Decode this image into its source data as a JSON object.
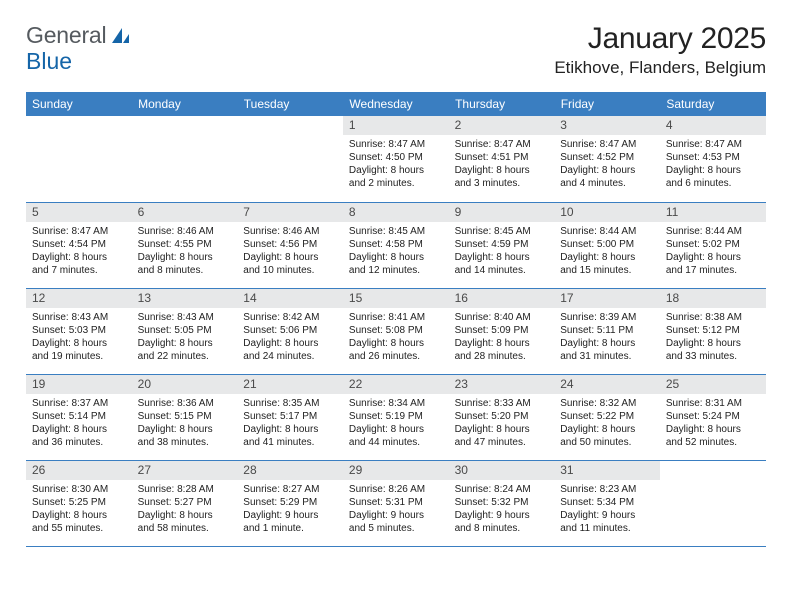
{
  "brand": {
    "word1": "General",
    "word2": "Blue"
  },
  "colors": {
    "header_bg": "#3a7ec1",
    "header_text": "#ffffff",
    "daynum_bg": "#e7e8e9",
    "daynum_text": "#4a4a4a",
    "border": "#3a7ec1",
    "body_text": "#222222",
    "logo_gray": "#555a5f",
    "logo_blue": "#1565a8",
    "background": "#ffffff"
  },
  "typography": {
    "month_title_fontsize": 30,
    "location_fontsize": 17,
    "weekday_fontsize": 12,
    "daynum_fontsize": 12,
    "cell_fontsize": 10
  },
  "title": "January 2025",
  "location": "Etikhove, Flanders, Belgium",
  "weekdays": [
    "Sunday",
    "Monday",
    "Tuesday",
    "Wednesday",
    "Thursday",
    "Friday",
    "Saturday"
  ],
  "weeks": [
    [
      {
        "day": "",
        "lines": []
      },
      {
        "day": "",
        "lines": []
      },
      {
        "day": "",
        "lines": []
      },
      {
        "day": "1",
        "lines": [
          "Sunrise: 8:47 AM",
          "Sunset: 4:50 PM",
          "Daylight: 8 hours",
          "and 2 minutes."
        ]
      },
      {
        "day": "2",
        "lines": [
          "Sunrise: 8:47 AM",
          "Sunset: 4:51 PM",
          "Daylight: 8 hours",
          "and 3 minutes."
        ]
      },
      {
        "day": "3",
        "lines": [
          "Sunrise: 8:47 AM",
          "Sunset: 4:52 PM",
          "Daylight: 8 hours",
          "and 4 minutes."
        ]
      },
      {
        "day": "4",
        "lines": [
          "Sunrise: 8:47 AM",
          "Sunset: 4:53 PM",
          "Daylight: 8 hours",
          "and 6 minutes."
        ]
      }
    ],
    [
      {
        "day": "5",
        "lines": [
          "Sunrise: 8:47 AM",
          "Sunset: 4:54 PM",
          "Daylight: 8 hours",
          "and 7 minutes."
        ]
      },
      {
        "day": "6",
        "lines": [
          "Sunrise: 8:46 AM",
          "Sunset: 4:55 PM",
          "Daylight: 8 hours",
          "and 8 minutes."
        ]
      },
      {
        "day": "7",
        "lines": [
          "Sunrise: 8:46 AM",
          "Sunset: 4:56 PM",
          "Daylight: 8 hours",
          "and 10 minutes."
        ]
      },
      {
        "day": "8",
        "lines": [
          "Sunrise: 8:45 AM",
          "Sunset: 4:58 PM",
          "Daylight: 8 hours",
          "and 12 minutes."
        ]
      },
      {
        "day": "9",
        "lines": [
          "Sunrise: 8:45 AM",
          "Sunset: 4:59 PM",
          "Daylight: 8 hours",
          "and 14 minutes."
        ]
      },
      {
        "day": "10",
        "lines": [
          "Sunrise: 8:44 AM",
          "Sunset: 5:00 PM",
          "Daylight: 8 hours",
          "and 15 minutes."
        ]
      },
      {
        "day": "11",
        "lines": [
          "Sunrise: 8:44 AM",
          "Sunset: 5:02 PM",
          "Daylight: 8 hours",
          "and 17 minutes."
        ]
      }
    ],
    [
      {
        "day": "12",
        "lines": [
          "Sunrise: 8:43 AM",
          "Sunset: 5:03 PM",
          "Daylight: 8 hours",
          "and 19 minutes."
        ]
      },
      {
        "day": "13",
        "lines": [
          "Sunrise: 8:43 AM",
          "Sunset: 5:05 PM",
          "Daylight: 8 hours",
          "and 22 minutes."
        ]
      },
      {
        "day": "14",
        "lines": [
          "Sunrise: 8:42 AM",
          "Sunset: 5:06 PM",
          "Daylight: 8 hours",
          "and 24 minutes."
        ]
      },
      {
        "day": "15",
        "lines": [
          "Sunrise: 8:41 AM",
          "Sunset: 5:08 PM",
          "Daylight: 8 hours",
          "and 26 minutes."
        ]
      },
      {
        "day": "16",
        "lines": [
          "Sunrise: 8:40 AM",
          "Sunset: 5:09 PM",
          "Daylight: 8 hours",
          "and 28 minutes."
        ]
      },
      {
        "day": "17",
        "lines": [
          "Sunrise: 8:39 AM",
          "Sunset: 5:11 PM",
          "Daylight: 8 hours",
          "and 31 minutes."
        ]
      },
      {
        "day": "18",
        "lines": [
          "Sunrise: 8:38 AM",
          "Sunset: 5:12 PM",
          "Daylight: 8 hours",
          "and 33 minutes."
        ]
      }
    ],
    [
      {
        "day": "19",
        "lines": [
          "Sunrise: 8:37 AM",
          "Sunset: 5:14 PM",
          "Daylight: 8 hours",
          "and 36 minutes."
        ]
      },
      {
        "day": "20",
        "lines": [
          "Sunrise: 8:36 AM",
          "Sunset: 5:15 PM",
          "Daylight: 8 hours",
          "and 38 minutes."
        ]
      },
      {
        "day": "21",
        "lines": [
          "Sunrise: 8:35 AM",
          "Sunset: 5:17 PM",
          "Daylight: 8 hours",
          "and 41 minutes."
        ]
      },
      {
        "day": "22",
        "lines": [
          "Sunrise: 8:34 AM",
          "Sunset: 5:19 PM",
          "Daylight: 8 hours",
          "and 44 minutes."
        ]
      },
      {
        "day": "23",
        "lines": [
          "Sunrise: 8:33 AM",
          "Sunset: 5:20 PM",
          "Daylight: 8 hours",
          "and 47 minutes."
        ]
      },
      {
        "day": "24",
        "lines": [
          "Sunrise: 8:32 AM",
          "Sunset: 5:22 PM",
          "Daylight: 8 hours",
          "and 50 minutes."
        ]
      },
      {
        "day": "25",
        "lines": [
          "Sunrise: 8:31 AM",
          "Sunset: 5:24 PM",
          "Daylight: 8 hours",
          "and 52 minutes."
        ]
      }
    ],
    [
      {
        "day": "26",
        "lines": [
          "Sunrise: 8:30 AM",
          "Sunset: 5:25 PM",
          "Daylight: 8 hours",
          "and 55 minutes."
        ]
      },
      {
        "day": "27",
        "lines": [
          "Sunrise: 8:28 AM",
          "Sunset: 5:27 PM",
          "Daylight: 8 hours",
          "and 58 minutes."
        ]
      },
      {
        "day": "28",
        "lines": [
          "Sunrise: 8:27 AM",
          "Sunset: 5:29 PM",
          "Daylight: 9 hours",
          "and 1 minute."
        ]
      },
      {
        "day": "29",
        "lines": [
          "Sunrise: 8:26 AM",
          "Sunset: 5:31 PM",
          "Daylight: 9 hours",
          "and 5 minutes."
        ]
      },
      {
        "day": "30",
        "lines": [
          "Sunrise: 8:24 AM",
          "Sunset: 5:32 PM",
          "Daylight: 9 hours",
          "and 8 minutes."
        ]
      },
      {
        "day": "31",
        "lines": [
          "Sunrise: 8:23 AM",
          "Sunset: 5:34 PM",
          "Daylight: 9 hours",
          "and 11 minutes."
        ]
      },
      {
        "day": "",
        "lines": []
      }
    ]
  ]
}
